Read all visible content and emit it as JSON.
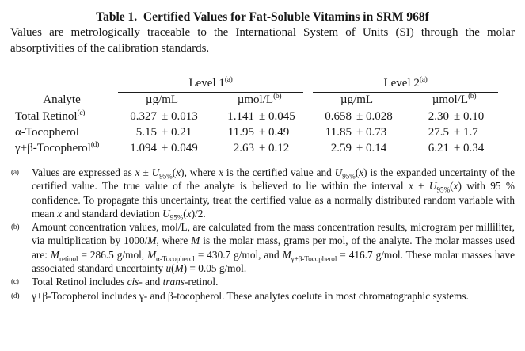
{
  "page": {
    "title": "Table 1.  Certified Values for Fat-Soluble Vitamins in SRM 968f",
    "intro": "Values are metrologically traceable to the International System of Units (SI) through the molar absorptivities of the calibration standards."
  },
  "table": {
    "groups": {
      "level1": "Level 1",
      "level2": "Level 2",
      "group_sup": "(a)"
    },
    "columns": {
      "analyte": "Analyte",
      "mass": "µg/mL",
      "molar": "µmol/L",
      "molar_sup": "(b)"
    },
    "rows": [
      {
        "analyte": "Total Retinol",
        "sup": "(c)",
        "cells": [
          {
            "v": "0.327",
            "u": "± 0.013"
          },
          {
            "v": "1.141",
            "u": "± 0.045"
          },
          {
            "v": "0.658",
            "u": "± 0.028"
          },
          {
            "v": "2.30",
            "u": "± 0.10"
          }
        ]
      },
      {
        "analyte": "α-Tocopherol",
        "sup": "",
        "cells": [
          {
            "v": "5.15",
            "u": "± 0.21"
          },
          {
            "v": "11.95",
            "u": "± 0.49"
          },
          {
            "v": "11.85",
            "u": "± 0.73"
          },
          {
            "v": "27.5",
            "u": "± 1.7"
          }
        ]
      },
      {
        "analyte": "γ+β-Tocopherol",
        "sup": "(d)",
        "cells": [
          {
            "v": "1.094",
            "u": "± 0.049"
          },
          {
            "v": "2.63",
            "u": "± 0.12"
          },
          {
            "v": "2.59",
            "u": "± 0.14"
          },
          {
            "v": "6.21",
            "u": "± 0.34"
          }
        ]
      }
    ]
  },
  "footnotes": [
    {
      "marker": "(a)",
      "segments": [
        {
          "t": "Values are expressed as "
        },
        {
          "t": "x",
          "s": "i"
        },
        {
          "t": " ± "
        },
        {
          "t": "U",
          "s": "i"
        },
        {
          "t": "95%",
          "s": "sub"
        },
        {
          "t": "("
        },
        {
          "t": "x",
          "s": "i"
        },
        {
          "t": "), where "
        },
        {
          "t": "x",
          "s": "i"
        },
        {
          "t": " is the certified value and "
        },
        {
          "t": "U",
          "s": "i"
        },
        {
          "t": "95%",
          "s": "sub"
        },
        {
          "t": "("
        },
        {
          "t": "x",
          "s": "i"
        },
        {
          "t": ") is the expanded uncertainty of the certified value.  The true value of the analyte is believed to lie within the interval "
        },
        {
          "t": "x",
          "s": "i"
        },
        {
          "t": " ± "
        },
        {
          "t": "U",
          "s": "i"
        },
        {
          "t": "95%",
          "s": "sub"
        },
        {
          "t": "("
        },
        {
          "t": "x",
          "s": "i"
        },
        {
          "t": ") with 95 % confidence.  To propagate this uncertainty, treat the certified value as a normally distributed random variable with mean "
        },
        {
          "t": "x",
          "s": "i"
        },
        {
          "t": " and standard deviation "
        },
        {
          "t": "U",
          "s": "i"
        },
        {
          "t": "95%",
          "s": "sub"
        },
        {
          "t": "("
        },
        {
          "t": "x",
          "s": "i"
        },
        {
          "t": ")/2."
        }
      ]
    },
    {
      "marker": "(b)",
      "segments": [
        {
          "t": "Amount concentration values, mol/L, are calculated from the mass concentration results, microgram per milliliter, via multiplication by 1000/"
        },
        {
          "t": "M",
          "s": "i"
        },
        {
          "t": ", where "
        },
        {
          "t": "M",
          "s": "i"
        },
        {
          "t": " is the molar mass, grams per mol, of the analyte.  The molar masses used are:  "
        },
        {
          "t": "M",
          "s": "i"
        },
        {
          "t": "retinol",
          "s": "sub"
        },
        {
          "t": " = 286.5 g/mol,  "
        },
        {
          "t": "M",
          "s": "i"
        },
        {
          "t": "α-Tocopherol",
          "s": "sub"
        },
        {
          "t": " = 430.7 g/mol, and "
        },
        {
          "t": "M",
          "s": "i"
        },
        {
          "t": "γ+β-Tocopherol",
          "s": "sub"
        },
        {
          "t": " = 416.7 g/mol.   These molar masses have associated standard uncertainty "
        },
        {
          "t": "u",
          "s": "i"
        },
        {
          "t": "("
        },
        {
          "t": "M",
          "s": "i"
        },
        {
          "t": ") = 0.05 g/mol."
        }
      ]
    },
    {
      "marker": "(c)",
      "segments": [
        {
          "t": "Total Retinol includes "
        },
        {
          "t": "cis",
          "s": "i"
        },
        {
          "t": "- and "
        },
        {
          "t": "trans",
          "s": "i"
        },
        {
          "t": "-retinol."
        }
      ]
    },
    {
      "marker": "(d)",
      "segments": [
        {
          "t": "γ+β-Tocopherol includes γ- and β-tocopherol.  These analytes coelute in most chromatographic systems."
        }
      ]
    }
  ]
}
